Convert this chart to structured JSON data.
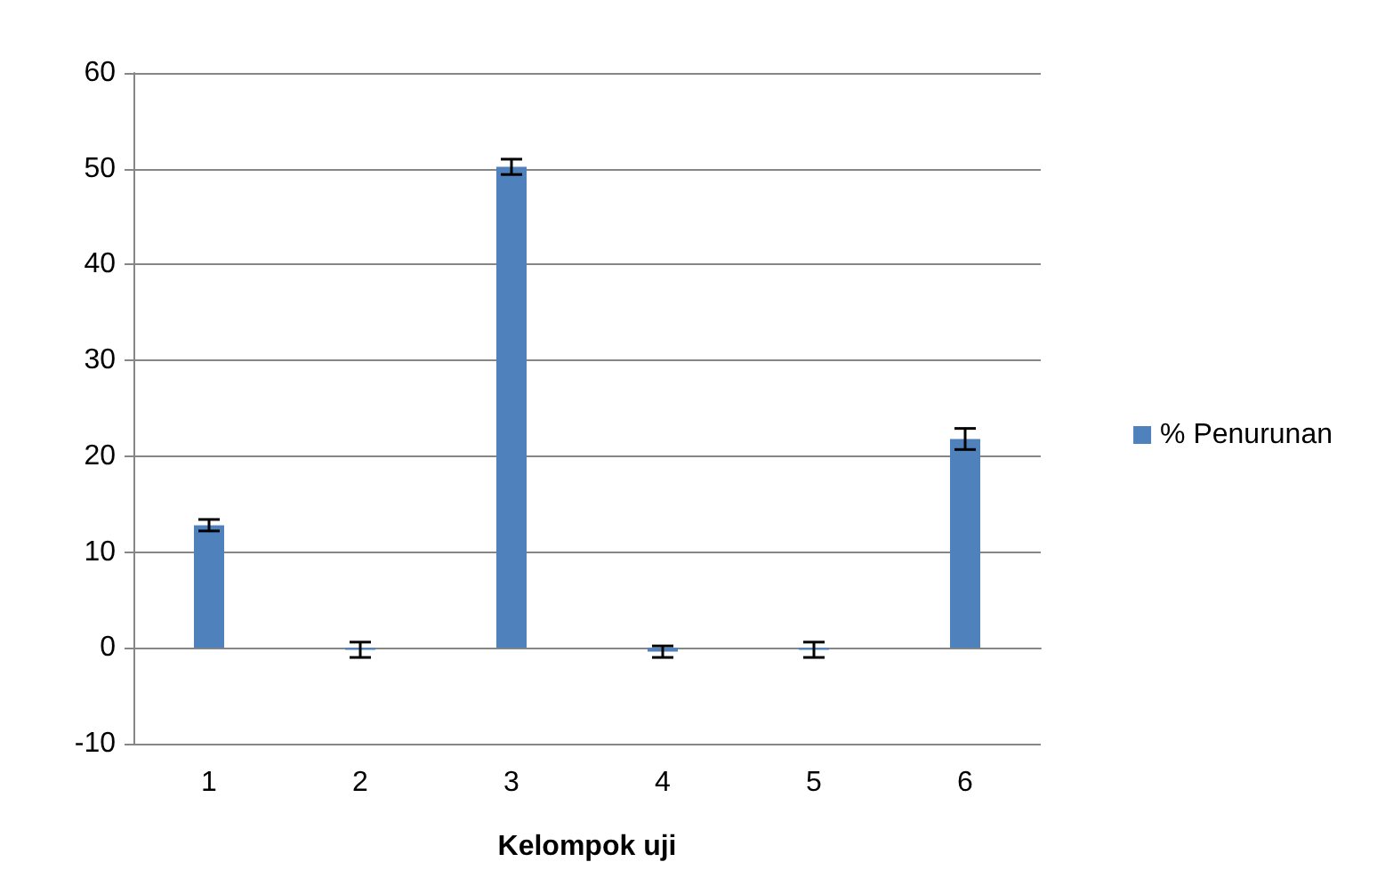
{
  "chart_data": {
    "type": "bar",
    "xlabel": "Kelompok uji",
    "categories": [
      "1",
      "2",
      "3",
      "4",
      "5",
      "6"
    ],
    "series": [
      {
        "name": "% Penurunan",
        "color": "#4f81bd",
        "values": [
          12.8,
          -0.2,
          50.2,
          -0.4,
          -0.2,
          21.8
        ],
        "errors": [
          0.6,
          0.8,
          0.8,
          0.6,
          0.8,
          1.1
        ]
      }
    ],
    "ylim": [
      -10,
      60
    ],
    "yticks": [
      -10,
      0,
      10,
      20,
      30,
      40,
      50,
      60
    ],
    "grid": "y",
    "legend": "right"
  }
}
